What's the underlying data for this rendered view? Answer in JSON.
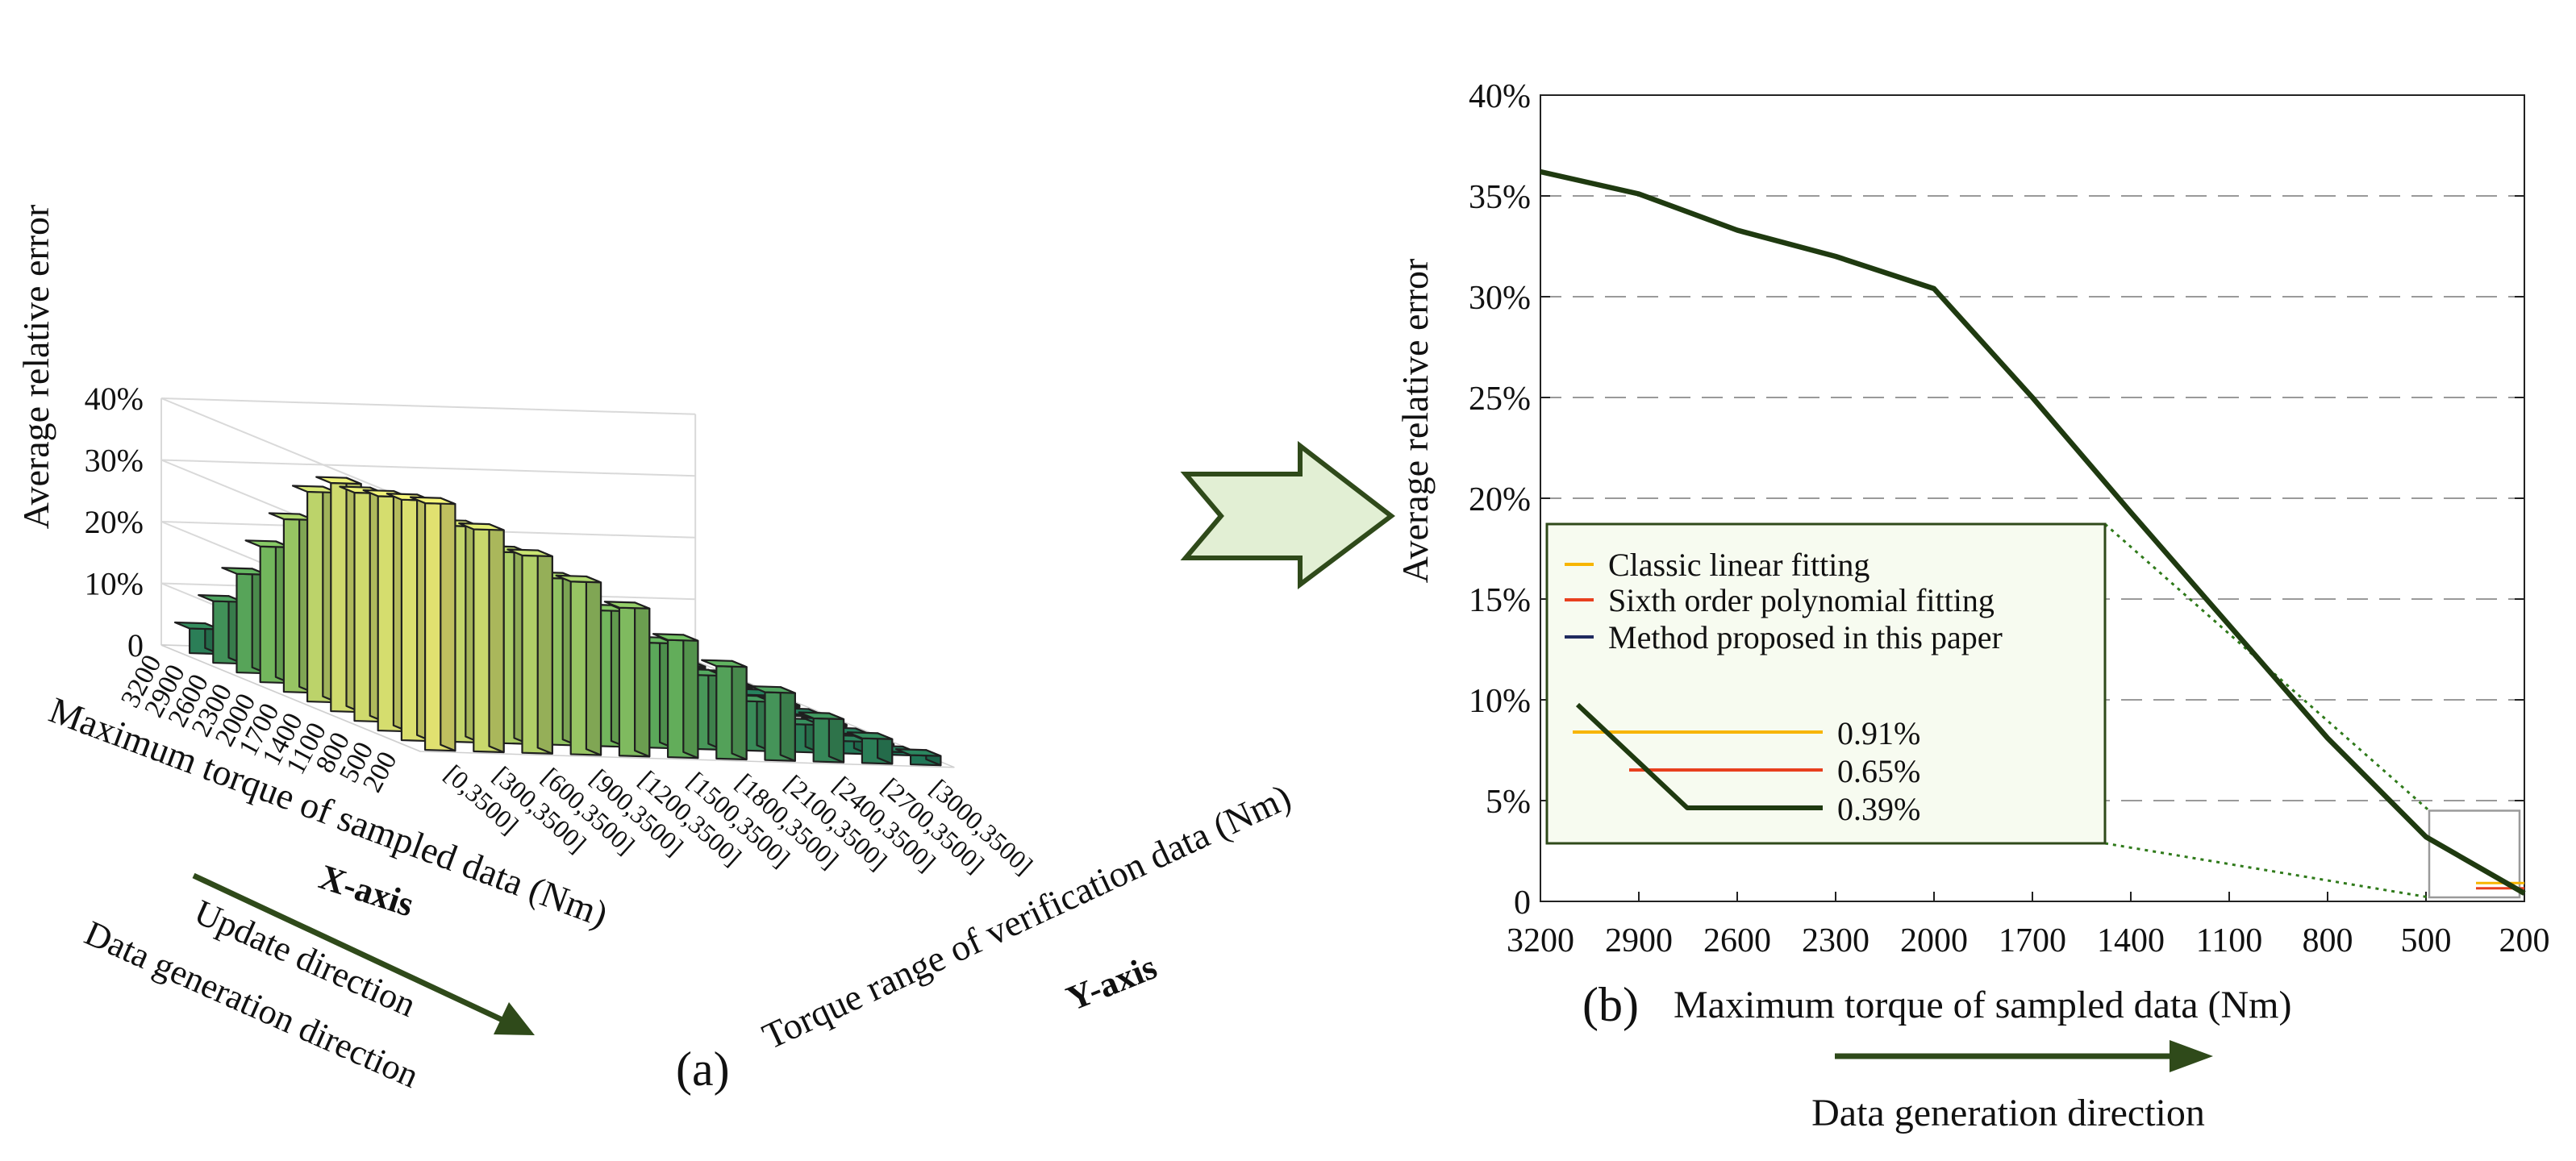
{
  "chart_data": [
    {
      "panel_label": "(a)",
      "type": "bar3d",
      "zlabel": "Average relative error",
      "z_ticks": [
        "0",
        "10%",
        "20%",
        "30%",
        "40%"
      ],
      "zlim": [
        0,
        40
      ],
      "xlabel": "Maximum torque of sampled data (Nm)",
      "x_axis_tag": "X-axis",
      "x_direction_text": [
        "Update direction",
        "Data generation direction"
      ],
      "x_categories": [
        "3200",
        "2900",
        "2600",
        "2300",
        "2000",
        "1700",
        "1400",
        "1100",
        "800",
        "500",
        "200"
      ],
      "ylabel": "Torque range of verification data (Nm)",
      "y_axis_tag": "Y-axis",
      "y_categories": [
        "[0,3500]",
        "[300,3500]",
        "[600,3500]",
        "[900,3500]",
        "[1200,3500]",
        "[1500,3500]",
        "[1800,3500]",
        "[2100,3500]",
        "[2400,3500]",
        "[2700,3500]",
        "[3000,3500]"
      ],
      "values_percent": [
        [
          4.0,
          10.0,
          16.0,
          22.0,
          28.0,
          34.0,
          37.0,
          37.0,
          38.0,
          39.0,
          40.0
        ],
        [
          0.5,
          4.0,
          9.0,
          14.0,
          20.0,
          26.0,
          31.0,
          33.0,
          34.0,
          35.0,
          36.0
        ],
        [
          0.3,
          0.5,
          3.5,
          8.0,
          13.0,
          18.0,
          24.0,
          28.0,
          30.0,
          31.0,
          32.0
        ],
        [
          0.3,
          0.3,
          0.5,
          3.5,
          7.0,
          12.0,
          17.0,
          22.0,
          25.0,
          27.0,
          28.0
        ],
        [
          0.3,
          0.3,
          0.3,
          0.5,
          3.0,
          6.5,
          11.0,
          16.0,
          20.0,
          22.0,
          24.0
        ],
        [
          0.3,
          0.3,
          0.3,
          0.3,
          0.5,
          3.0,
          6.0,
          10.0,
          14.0,
          17.0,
          19.0
        ],
        [
          0.3,
          0.3,
          0.3,
          0.3,
          0.3,
          0.5,
          3.0,
          5.5,
          9.0,
          12.0,
          15.0
        ],
        [
          0.3,
          0.3,
          0.3,
          0.3,
          0.3,
          0.3,
          0.5,
          2.5,
          5.0,
          8.0,
          11.0
        ],
        [
          0.3,
          0.3,
          0.3,
          0.3,
          0.3,
          0.3,
          0.3,
          0.5,
          2.5,
          4.5,
          7.0
        ],
        [
          0.3,
          0.3,
          0.3,
          0.3,
          0.3,
          0.3,
          0.3,
          0.3,
          0.5,
          2.0,
          4.0
        ],
        [
          0.3,
          0.3,
          0.3,
          0.3,
          0.3,
          0.3,
          0.3,
          0.3,
          0.3,
          0.5,
          1.5
        ]
      ],
      "colors": {
        "low": "#1e7b5e",
        "high": "#f5f57a",
        "edge": "#1f1f1f"
      }
    },
    {
      "panel_label": "(b)",
      "type": "line",
      "xlabel": "Maximum torque of sampled data (Nm)",
      "ylabel": "Average relative error",
      "x_categories": [
        "3200",
        "2900",
        "2600",
        "2300",
        "2000",
        "1700",
        "1400",
        "1100",
        "800",
        "500",
        "200"
      ],
      "y_ticks": [
        "0",
        "5%",
        "10%",
        "15%",
        "20%",
        "25%",
        "30%",
        "35%",
        "40%"
      ],
      "ylim": [
        0,
        40
      ],
      "grid": "horizontal dashed",
      "series": [
        {
          "values": [
            36.2,
            35.1,
            33.3,
            32.0,
            30.4,
            25.0,
            19.3,
            13.7,
            8.1,
            3.2,
            0.4
          ],
          "color": "#1f3a10"
        }
      ],
      "legend": {
        "placement": "lower-left",
        "entries": [
          {
            "name": "Classic linear fitting",
            "color": "#f7b500"
          },
          {
            "name": "Sixth order polynomial fitting",
            "color": "#e8401e"
          },
          {
            "name": "Method proposed in this paper",
            "color": "#1f2a5e"
          }
        ]
      },
      "inset": {
        "x_range": [
          "500",
          "200"
        ],
        "ylim": [
          0,
          4.5
        ],
        "lines": [
          {
            "label": "0.91%",
            "value": 0.91,
            "color": "#f7b500"
          },
          {
            "label": "0.65%",
            "value": 0.65,
            "color": "#e8401e"
          },
          {
            "label": "0.39%",
            "value": 0.39,
            "color": "#1f3a10"
          }
        ]
      },
      "direction_text": "Data generation direction",
      "arrow_color": "#2f4a1a"
    }
  ]
}
